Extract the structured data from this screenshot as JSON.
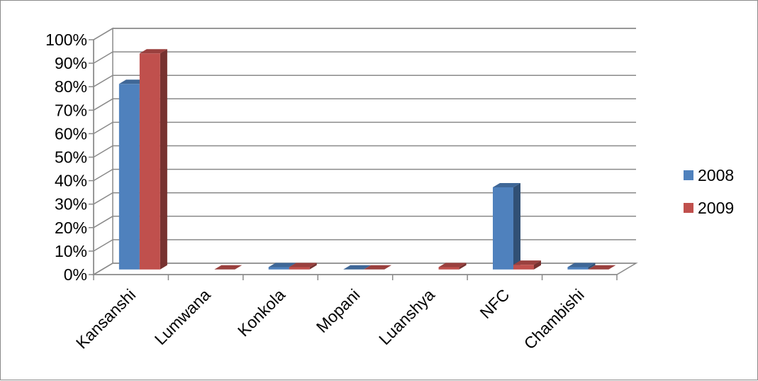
{
  "chart_data": {
    "type": "bar",
    "categories": [
      "Kansanshi",
      "Lumwana",
      "Konkola",
      "Mopani",
      "Luanshya",
      "NFC",
      "Chambishi"
    ],
    "series": [
      {
        "name": "2008",
        "color": "#4F81BD",
        "values": [
          0.79,
          null,
          0.01,
          0.0,
          null,
          0.35,
          0.01
        ]
      },
      {
        "name": "2009",
        "color": "#C0504D",
        "values": [
          0.92,
          0.0,
          0.01,
          0.0,
          0.01,
          0.02,
          0.0
        ]
      }
    ],
    "y_ticks": [
      "0%",
      "10%",
      "20%",
      "30%",
      "40%",
      "50%",
      "60%",
      "70%",
      "80%",
      "90%",
      "100%"
    ],
    "ylim": [
      0,
      1
    ],
    "grid": true,
    "legend_position": "right",
    "style": "3d-clustered-column"
  }
}
